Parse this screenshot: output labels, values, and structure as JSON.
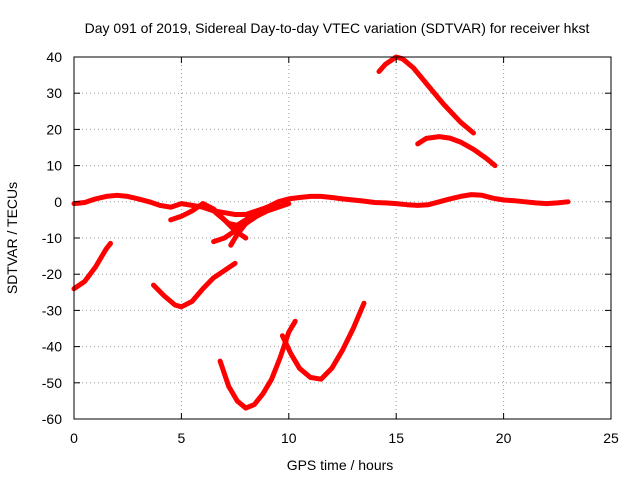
{
  "chart_data": {
    "type": "line",
    "title": "Day 091 of 2019, Sidereal Day-to-day VTEC variation (SDTVAR) for receiver hkst",
    "xlabel": "GPS time / hours",
    "ylabel": "SDTVAR / TECUs",
    "xlim": [
      0,
      25
    ],
    "ylim": [
      -60,
      40
    ],
    "xticks": [
      0,
      5,
      10,
      15,
      20,
      25
    ],
    "yticks": [
      -60,
      -50,
      -40,
      -30,
      -20,
      -10,
      0,
      10,
      20,
      30,
      40
    ],
    "grid": true,
    "color": "#ff0000",
    "series": [
      {
        "name": "arc-1",
        "x": [
          0,
          0.5,
          1.0,
          1.5,
          1.7
        ],
        "y": [
          -24,
          -22,
          -18,
          -13,
          -11.5
        ]
      },
      {
        "name": "arc-2",
        "x": [
          3.7,
          4.2,
          4.7,
          5.0,
          5.5,
          6.0,
          6.5,
          7.0,
          7.5
        ],
        "y": [
          -23,
          -26,
          -28.5,
          -29,
          -27.5,
          -24,
          -21,
          -19,
          -17
        ]
      },
      {
        "name": "arc-3",
        "x": [
          6.8,
          7.2,
          7.6,
          8.0,
          8.4,
          8.8,
          9.2,
          9.6,
          10.0,
          10.3
        ],
        "y": [
          -44,
          -51,
          -55,
          -57,
          -56,
          -53,
          -49,
          -43,
          -36,
          -33
        ]
      },
      {
        "name": "arc-4",
        "x": [
          9.7,
          10.1,
          10.5,
          11.0,
          11.5,
          12.0,
          12.5,
          13.0,
          13.5
        ],
        "y": [
          -37,
          -42,
          -46,
          -48.5,
          -49,
          -46,
          -41,
          -35,
          -28
        ]
      },
      {
        "name": "arc-5",
        "x": [
          14.2,
          14.5,
          15.0,
          15.3,
          15.8,
          16.5,
          17.2,
          18.0,
          18.6
        ],
        "y": [
          36,
          38,
          40,
          39.5,
          37,
          32,
          27,
          22,
          19
        ]
      },
      {
        "name": "arc-6",
        "x": [
          16.0,
          16.4,
          17.0,
          17.5,
          18.0,
          18.6,
          19.2,
          19.6
        ],
        "y": [
          16,
          17.5,
          18,
          17.6,
          16.5,
          14.5,
          12,
          10
        ]
      },
      {
        "name": "near-zero",
        "x": [
          0,
          0.5,
          1.0,
          1.5,
          2.0,
          2.5,
          3.0,
          3.5,
          4.0,
          4.5,
          5.0,
          5.5,
          6.0,
          6.5,
          7.0,
          7.5,
          8.0,
          8.5,
          9.0,
          9.5,
          10.0,
          10.5,
          11.0,
          11.5,
          12.0,
          12.5,
          13.0,
          13.5,
          14.0,
          14.5,
          15.0,
          15.5,
          16.0,
          16.5,
          17.0,
          17.5,
          18.0,
          18.5,
          19.0,
          19.5,
          20.0,
          20.5,
          21.0,
          21.5,
          22.0,
          22.5,
          23.0
        ],
        "y": [
          -0.5,
          -0.2,
          0.8,
          1.5,
          1.8,
          1.5,
          0.8,
          0,
          -1,
          -1.5,
          -0.5,
          -1,
          -1.5,
          -2.5,
          -3,
          -3.5,
          -3.5,
          -2.5,
          -1.5,
          0,
          0.8,
          1.2,
          1.5,
          1.5,
          1.2,
          0.8,
          0.5,
          0.2,
          -0.2,
          -0.3,
          -0.5,
          -0.8,
          -1,
          -0.8,
          0,
          0.8,
          1.5,
          2,
          1.8,
          1,
          0.5,
          0.3,
          0,
          -0.3,
          -0.5,
          -0.3,
          0
        ]
      },
      {
        "name": "dip-1",
        "x": [
          4.5,
          5.0,
          5.5,
          6.0,
          6.5,
          7.0,
          7.5,
          8.0
        ],
        "y": [
          -5,
          -4,
          -2.5,
          -0.5,
          -2,
          -5,
          -8,
          -10
        ]
      },
      {
        "name": "dip-2",
        "x": [
          6.0,
          6.4,
          6.8,
          7.2,
          7.6,
          8.0,
          8.4,
          8.8,
          9.2
        ],
        "y": [
          -0.5,
          -2,
          -4,
          -6,
          -6.5,
          -5,
          -3.5,
          -2,
          -1
        ]
      },
      {
        "name": "dip-3",
        "x": [
          6.5,
          7.0,
          7.5,
          8.0,
          8.5,
          9.0,
          9.5,
          10.0
        ],
        "y": [
          -11,
          -10,
          -8,
          -6,
          -4,
          -2.5,
          -1.5,
          -0.5
        ]
      },
      {
        "name": "dip-4",
        "x": [
          7.3,
          7.6,
          8.0,
          8.5,
          9.0,
          9.5
        ],
        "y": [
          -12,
          -9,
          -6,
          -3.5,
          -2,
          -1
        ]
      }
    ]
  }
}
